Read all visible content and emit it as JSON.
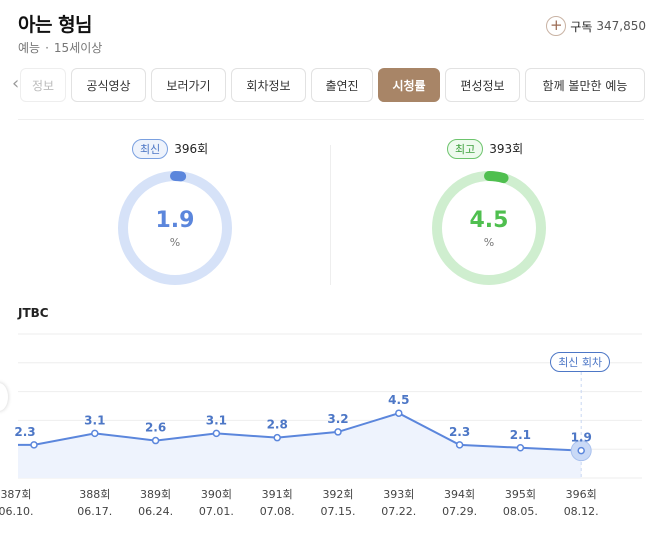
{
  "header": {
    "title": "아는 형님",
    "genre": "예능",
    "separator": "·",
    "rating": "15세이상",
    "subscribe_label": "구독",
    "subscribe_count": "347,850"
  },
  "tabs": [
    {
      "label": "정보",
      "state": "faded"
    },
    {
      "label": "공식영상",
      "state": "normal"
    },
    {
      "label": "보러가기",
      "state": "normal"
    },
    {
      "label": "회차정보",
      "state": "normal"
    },
    {
      "label": "출연진",
      "state": "normal"
    },
    {
      "label": "시청률",
      "state": "active"
    },
    {
      "label": "편성정보",
      "state": "normal"
    },
    {
      "label": "함께 볼만한 예능",
      "state": "normal"
    }
  ],
  "summary": {
    "latest": {
      "badge": "최신",
      "episode": "396회",
      "value": "1.9",
      "unit": "%",
      "color": "#5b86dc",
      "track": "#d6e2f8",
      "level": 0.019
    },
    "highest": {
      "badge": "최고",
      "episode": "393회",
      "value": "4.5",
      "unit": "%",
      "color": "#4fbf4f",
      "track": "#cfeecf",
      "level": 0.045
    }
  },
  "chart_data": {
    "type": "area",
    "network_label": "JTBC",
    "latest_tag": "최신 회차",
    "ylim": [
      0,
      10
    ],
    "line_color": "#5b86dc",
    "fill_color": "#eef3fd",
    "points": [
      {
        "episode": "387회",
        "date": "06.10.",
        "value": 2.3
      },
      {
        "episode": "388회",
        "date": "06.17.",
        "value": 3.1
      },
      {
        "episode": "389회",
        "date": "06.24.",
        "value": 2.6
      },
      {
        "episode": "390회",
        "date": "07.01.",
        "value": 3.1
      },
      {
        "episode": "391회",
        "date": "07.08.",
        "value": 2.8
      },
      {
        "episode": "392회",
        "date": "07.15.",
        "value": 3.2
      },
      {
        "episode": "393회",
        "date": "07.22.",
        "value": 4.5
      },
      {
        "episode": "394회",
        "date": "07.29.",
        "value": 2.3
      },
      {
        "episode": "395회",
        "date": "08.05.",
        "value": 2.1
      },
      {
        "episode": "396회",
        "date": "08.12.",
        "value": 1.9
      }
    ]
  }
}
